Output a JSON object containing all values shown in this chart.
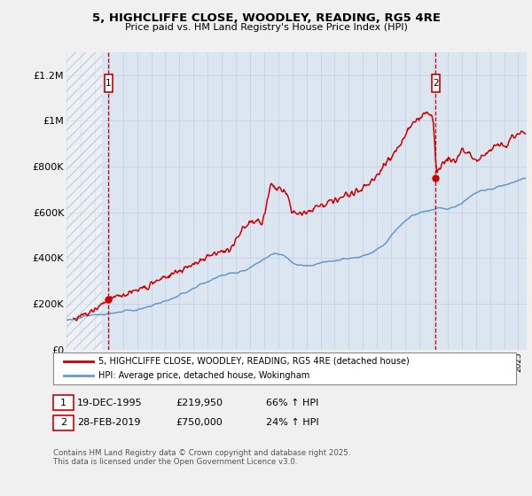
{
  "title": "5, HIGHCLIFFE CLOSE, WOODLEY, READING, RG5 4RE",
  "subtitle": "Price paid vs. HM Land Registry's House Price Index (HPI)",
  "ylabel_ticks": [
    "£0",
    "£200K",
    "£400K",
    "£600K",
    "£800K",
    "£1M",
    "£1.2M"
  ],
  "ytick_values": [
    0,
    200000,
    400000,
    600000,
    800000,
    1000000,
    1200000
  ],
  "ylim": [
    0,
    1300000
  ],
  "xlim_start": 1993,
  "xlim_end": 2025.6,
  "purchase1": {
    "date_num": 1995.97,
    "price": 219950,
    "label": "1",
    "date_str": "19-DEC-1995",
    "price_str": "£219,950",
    "hpi_pct": "66% ↑ HPI"
  },
  "purchase2": {
    "date_num": 2019.16,
    "price": 750000,
    "label": "2",
    "date_str": "28-FEB-2019",
    "price_str": "£750,000",
    "hpi_pct": "24% ↑ HPI"
  },
  "red_line_color": "#cc0000",
  "blue_line_color": "#6699cc",
  "grid_color": "#c8d4e8",
  "plot_bg_color": "#dce6f0",
  "fig_bg_color": "#f0f0f0",
  "legend_label_red": "5, HIGHCLIFFE CLOSE, WOODLEY, READING, RG5 4RE (detached house)",
  "legend_label_blue": "HPI: Average price, detached house, Wokingham",
  "footnote": "Contains HM Land Registry data © Crown copyright and database right 2025.\nThis data is licensed under the Open Government Licence v3.0.",
  "marker_box_color": "#cc0000",
  "hatch_end": 1995.5
}
